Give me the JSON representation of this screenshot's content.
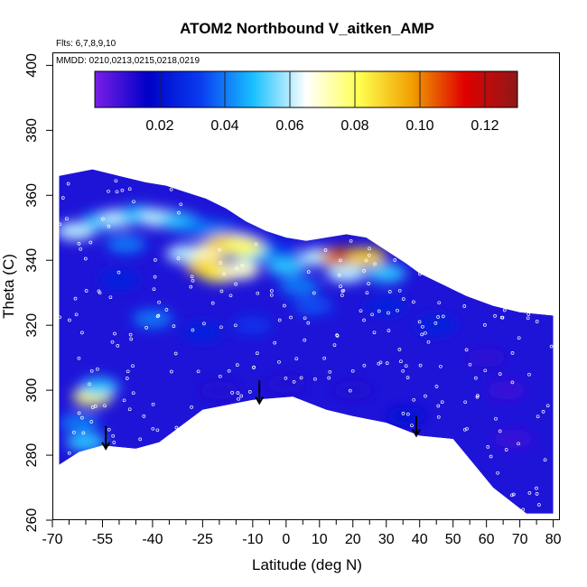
{
  "chart_data": {
    "type": "heatmap",
    "title": "ATOM2 Northbound V_aitken_AMP",
    "annotations": [
      "Flts: 6,7,8,9,10",
      "MMDD: 0210,0213,0215,0218,0219"
    ],
    "xlabel": "Latitude (deg N)",
    "ylabel": "Theta (C)",
    "xlim": [
      -70,
      82
    ],
    "ylim": [
      260,
      404
    ],
    "x_ticks": [
      -70,
      -55,
      -40,
      -25,
      -10,
      0,
      10,
      20,
      30,
      40,
      50,
      60,
      70,
      80
    ],
    "x_minor_ticks": [
      -65,
      -60,
      -50,
      -45,
      -35,
      -30,
      -20,
      -15,
      -5,
      5,
      15,
      25,
      35,
      45,
      55,
      65,
      75
    ],
    "y_ticks": [
      260,
      280,
      300,
      320,
      340,
      360,
      380,
      400
    ],
    "colorbar": {
      "min": 0.0,
      "max": 0.13,
      "ticks": [
        0.02,
        0.04,
        0.06,
        0.08,
        0.1,
        0.12
      ],
      "tick_labels": [
        "0.02",
        "0.04",
        "0.06",
        "0.08",
        "0.10",
        "0.12"
      ],
      "colors": [
        "#7a1fe6",
        "#0000c8",
        "#0a3cf0",
        "#18c0ff",
        "#ffffff",
        "#ffff50",
        "#f0a000",
        "#e00000",
        "#901818"
      ]
    },
    "arrows_x": [
      -54,
      -8,
      39
    ],
    "domain_outline": [
      [
        -68,
        366
      ],
      [
        -58,
        368
      ],
      [
        -50,
        366
      ],
      [
        -42,
        364
      ],
      [
        -36,
        363
      ],
      [
        -30,
        361
      ],
      [
        -24,
        359
      ],
      [
        -18,
        356
      ],
      [
        -12,
        352
      ],
      [
        -6,
        349
      ],
      [
        0,
        347
      ],
      [
        6,
        346
      ],
      [
        12,
        347
      ],
      [
        18,
        348
      ],
      [
        24,
        347
      ],
      [
        30,
        343
      ],
      [
        36,
        339
      ],
      [
        40,
        336
      ],
      [
        46,
        333
      ],
      [
        54,
        329
      ],
      [
        62,
        326
      ],
      [
        70,
        324
      ],
      [
        80,
        323
      ],
      [
        80,
        262
      ],
      [
        72,
        262
      ],
      [
        62,
        270
      ],
      [
        50,
        285
      ],
      [
        40,
        286
      ],
      [
        30,
        290
      ],
      [
        20,
        292
      ],
      [
        12,
        294
      ],
      [
        2,
        298
      ],
      [
        -10,
        297
      ],
      [
        -25,
        294
      ],
      [
        -38,
        284
      ],
      [
        -45,
        282
      ],
      [
        -55,
        283
      ],
      [
        -62,
        281
      ],
      [
        -68,
        277
      ]
    ],
    "cells": [
      {
        "x": -63,
        "y": 349,
        "v": 0.06
      },
      {
        "x": -55,
        "y": 352,
        "v": 0.05
      },
      {
        "x": -50,
        "y": 353,
        "v": 0.06
      },
      {
        "x": -44,
        "y": 354,
        "v": 0.05
      },
      {
        "x": -38,
        "y": 353,
        "v": 0.06
      },
      {
        "x": -32,
        "y": 352,
        "v": 0.05
      },
      {
        "x": -26,
        "y": 350,
        "v": 0.04
      },
      {
        "x": -20,
        "y": 349,
        "v": 0.04
      },
      {
        "x": -14,
        "y": 347,
        "v": 0.03
      },
      {
        "x": -8,
        "y": 345,
        "v": 0.03
      },
      {
        "x": -2,
        "y": 343,
        "v": 0.03
      },
      {
        "x": -48,
        "y": 345,
        "v": 0.04
      },
      {
        "x": -30,
        "y": 342,
        "v": 0.06
      },
      {
        "x": -22,
        "y": 343,
        "v": 0.07
      },
      {
        "x": -16,
        "y": 345,
        "v": 0.065
      },
      {
        "x": -10,
        "y": 342,
        "v": 0.05
      },
      {
        "x": -24,
        "y": 338,
        "v": 0.09
      },
      {
        "x": -20,
        "y": 336,
        "v": 0.085
      },
      {
        "x": -14,
        "y": 337,
        "v": 0.07
      },
      {
        "x": -18,
        "y": 345,
        "v": 0.09
      },
      {
        "x": -13,
        "y": 344,
        "v": 0.08
      },
      {
        "x": 0,
        "y": 338,
        "v": 0.05
      },
      {
        "x": 10,
        "y": 341,
        "v": 0.06
      },
      {
        "x": 16,
        "y": 341,
        "v": 0.1
      },
      {
        "x": 20,
        "y": 341,
        "v": 0.12
      },
      {
        "x": 24,
        "y": 341,
        "v": 0.09
      },
      {
        "x": 18,
        "y": 336,
        "v": 0.06
      },
      {
        "x": 30,
        "y": 336,
        "v": 0.05
      },
      {
        "x": 4,
        "y": 332,
        "v": 0.04
      },
      {
        "x": 8,
        "y": 326,
        "v": 0.035
      },
      {
        "x": 30,
        "y": 326,
        "v": 0.025
      },
      {
        "x": -40,
        "y": 322,
        "v": 0.04
      },
      {
        "x": -50,
        "y": 334,
        "v": 0.025
      },
      {
        "x": -58,
        "y": 298,
        "v": 0.08
      },
      {
        "x": -56,
        "y": 301,
        "v": 0.05
      },
      {
        "x": -62,
        "y": 290,
        "v": 0.04
      },
      {
        "x": -60,
        "y": 284,
        "v": 0.05
      },
      {
        "x": 60,
        "y": 310,
        "v": 0.01
      },
      {
        "x": 66,
        "y": 300,
        "v": 0.008
      },
      {
        "x": 68,
        "y": 285,
        "v": 0.008
      },
      {
        "x": -20,
        "y": 300,
        "v": 0.012
      },
      {
        "x": 0,
        "y": 302,
        "v": 0.012
      },
      {
        "x": 20,
        "y": 300,
        "v": 0.012
      },
      {
        "x": 36,
        "y": 292,
        "v": 0.02
      },
      {
        "x": -10,
        "y": 320,
        "v": 0.03
      },
      {
        "x": -25,
        "y": 318,
        "v": 0.025
      },
      {
        "x": 45,
        "y": 320,
        "v": 0.025
      }
    ]
  }
}
